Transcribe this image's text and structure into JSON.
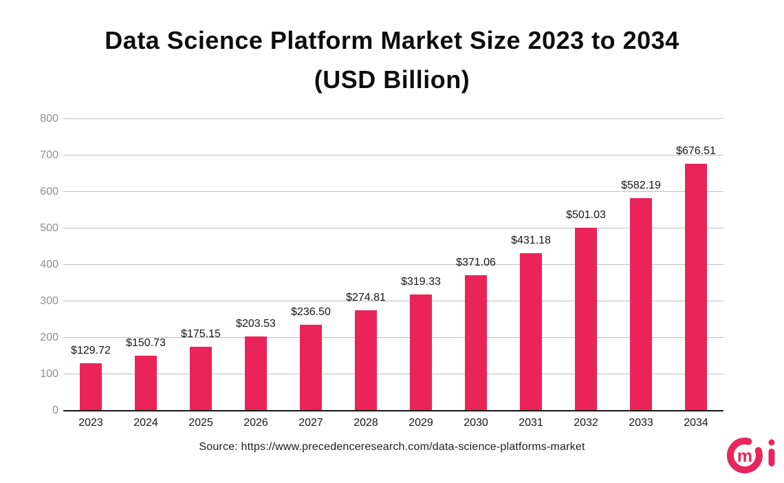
{
  "chart": {
    "title_line1": "Data Science Platform Market Size 2023 to 2034",
    "title_line2": "(USD Billion)"
  },
  "source": {
    "text": "Source: https://www.precedenceresearch.com/data-science-platforms-market"
  },
  "logo": {
    "name": "precedence-research-logomark",
    "letter": "m",
    "color": "#e8255c"
  },
  "chart_data": {
    "type": "bar",
    "title": "Data Science Platform Market Size 2023 to 2034 (USD Billion)",
    "categories": [
      "2023",
      "2024",
      "2025",
      "2026",
      "2027",
      "2028",
      "2029",
      "2030",
      "2031",
      "2032",
      "2033",
      "2034"
    ],
    "values": [
      129.72,
      150.73,
      175.15,
      203.53,
      236.5,
      274.81,
      319.33,
      371.06,
      431.18,
      501.03,
      582.19,
      676.51
    ],
    "bar_labels": [
      "$129.72",
      "$150.73",
      "$175.15",
      "$203.53",
      "$236.50",
      "$274.81",
      "$319.33",
      "$371.06",
      "$431.18",
      "$501.03",
      "$582.19",
      "$676.51"
    ],
    "xlabel": "",
    "ylabel": "",
    "ylim": [
      0,
      800
    ],
    "yticks": [
      0,
      100,
      200,
      300,
      400,
      500,
      600,
      700,
      800
    ],
    "grid": true,
    "legend": false,
    "bar_color": "#ea2458",
    "gridline_color": "#bfbfbf",
    "axis_color": "#141414",
    "ytick_color": "#8f8f8f",
    "label_color": "#151515"
  }
}
